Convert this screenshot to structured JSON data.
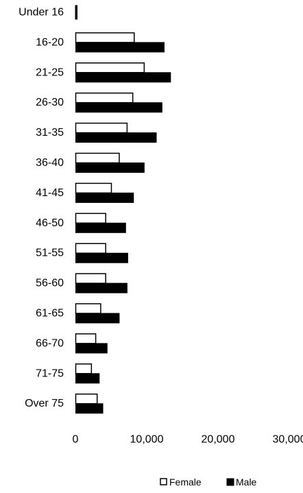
{
  "chart_data": {
    "type": "bar",
    "orientation": "horizontal",
    "categories": [
      "Under 16",
      "16-20",
      "21-25",
      "26-30",
      "31-35",
      "36-40",
      "41-45",
      "46-50",
      "51-55",
      "56-60",
      "61-65",
      "66-70",
      "71-75",
      "Over 75"
    ],
    "series": [
      {
        "name": "Female",
        "color": "#ffffff",
        "stroke": "#000000",
        "values": [
          0,
          8200,
          9600,
          8000,
          7200,
          6100,
          5000,
          4200,
          4200,
          4200,
          3500,
          2800,
          2200,
          3000
        ]
      },
      {
        "name": "Male",
        "color": "#000000",
        "stroke": "#000000",
        "values": [
          200,
          12400,
          13300,
          12100,
          11300,
          9600,
          8100,
          7000,
          7300,
          7200,
          6100,
          4400,
          3300,
          3800
        ]
      }
    ],
    "x_ticks": [
      "0",
      "10,000",
      "20,000",
      "30,000"
    ],
    "xlim": [
      0,
      30000
    ],
    "title": "",
    "xlabel": "",
    "ylabel": "",
    "grid": false,
    "legend_position": "bottom-right"
  }
}
